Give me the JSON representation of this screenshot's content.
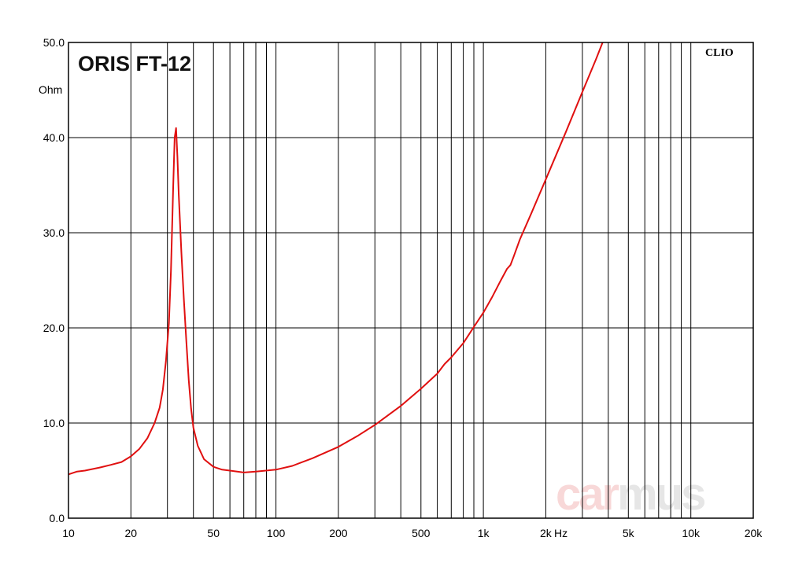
{
  "chart_data": {
    "type": "line",
    "title": "ORIS FT-12",
    "brand": "CLIO",
    "watermark": {
      "part1": "car",
      "part2": "mus"
    },
    "xlabel": "Hz",
    "ylabel": "Ohm",
    "x_scale": "log",
    "xlim": [
      10,
      20000
    ],
    "ylim": [
      0,
      50
    ],
    "grid": true,
    "x_ticks": [
      {
        "v": 10,
        "label": "10"
      },
      {
        "v": 20,
        "label": "20"
      },
      {
        "v": 50,
        "label": "50"
      },
      {
        "v": 100,
        "label": "100"
      },
      {
        "v": 200,
        "label": "200"
      },
      {
        "v": 500,
        "label": "500"
      },
      {
        "v": 1000,
        "label": "1k"
      },
      {
        "v": 2000,
        "label": "2k"
      },
      {
        "v": 5000,
        "label": "5k"
      },
      {
        "v": 10000,
        "label": "10k"
      },
      {
        "v": 20000,
        "label": "20k"
      }
    ],
    "y_ticks": [
      {
        "v": 0,
        "label": "0.0"
      },
      {
        "v": 10,
        "label": "10.0"
      },
      {
        "v": 20,
        "label": "20.0"
      },
      {
        "v": 30,
        "label": "30.0"
      },
      {
        "v": 40,
        "label": "40.0"
      },
      {
        "v": 50,
        "label": "50.0"
      }
    ],
    "colors": {
      "line": "#e01010",
      "grid": "#000000",
      "watermark1": "#f8d8d8",
      "watermark2": "#e6e6e6"
    },
    "series": [
      {
        "x": [
          10,
          11,
          12,
          14,
          16,
          18,
          20,
          22,
          24,
          26,
          27.5,
          28.5,
          29.5,
          30.5,
          31.2,
          32,
          32.5,
          33,
          33.5,
          34,
          35,
          36,
          37,
          38,
          39,
          40,
          42,
          45,
          50,
          55,
          60,
          70,
          80,
          100,
          120,
          150,
          200,
          250,
          300,
          400,
          500,
          600,
          650,
          700,
          800,
          900,
          1000,
          1100,
          1200,
          1300,
          1350,
          1400,
          1500,
          1700,
          2000,
          2500,
          3000,
          3500,
          4000
        ],
        "y": [
          4.6,
          4.9,
          5.0,
          5.3,
          5.6,
          5.9,
          6.5,
          7.3,
          8.4,
          10.0,
          11.6,
          13.5,
          16.5,
          20.5,
          26.0,
          35.0,
          40.0,
          41.0,
          38.0,
          34.0,
          28.0,
          23.0,
          18.5,
          14.5,
          11.5,
          9.5,
          7.6,
          6.2,
          5.4,
          5.1,
          5.0,
          4.8,
          4.9,
          5.1,
          5.5,
          6.3,
          7.5,
          8.7,
          9.8,
          11.8,
          13.6,
          15.2,
          16.2,
          16.9,
          18.4,
          20.1,
          21.6,
          23.2,
          24.8,
          26.2,
          26.6,
          27.5,
          29.3,
          32.0,
          35.6,
          40.6,
          44.8,
          48.3,
          51.5
        ]
      }
    ]
  }
}
